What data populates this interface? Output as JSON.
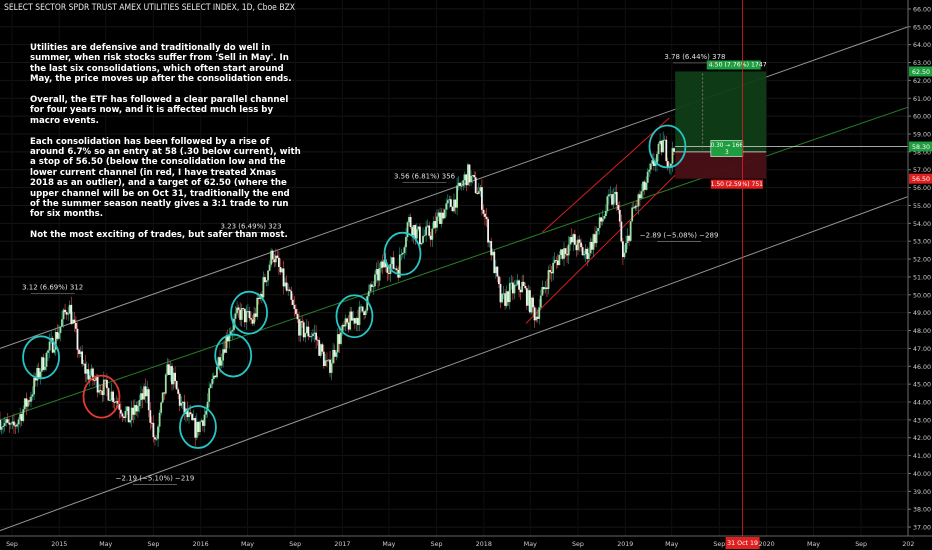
{
  "header": {
    "title": "SELECT SECTOR SPDR TRUST AMEX UTILITIES SELECT INDEX, 1D, Cboe BZX"
  },
  "note": {
    "paragraphs": [
      "Utilities are defensive and traditionally do well in summer, when risk stocks suffer from 'Sell in May'. In the last six consolidations, which often start around May, the price moves up after the consolidation ends.",
      "Overall, the ETF has followed a clear parallel channel for four years now, and it is affected much less by macro events.",
      "Each consolidation has been followed by a rise of around 6.7% so an entry at 58 (.30 below current), with a stop of 56.50 (below the consolidation low and the lower current channel (in red, I have treated Xmas 2018 as an outlier), and a target of 62.50 (where the upper channel will be on Oct 31, traditionally the end of the summer season neatly gives a 3:1 trade to run for six months.",
      "Not the most exciting of trades, but safer than most."
    ]
  },
  "chart_data": {
    "type": "candlestick",
    "title": "SELECT SECTOR SPDR TRUST AMEX UTILITIES SELECT INDEX, 1D, Cboe BZX",
    "y_axis": {
      "ylim": [
        36.5,
        66.5
      ],
      "ticks": [
        "37.00",
        "38.00",
        "39.00",
        "40.00",
        "41.00",
        "42.00",
        "43.00",
        "44.00",
        "45.00",
        "46.00",
        "47.00",
        "48.00",
        "49.00",
        "50.00",
        "51.00",
        "52.00",
        "53.00",
        "54.00",
        "55.00",
        "56.00",
        "57.00",
        "58.00",
        "59.00",
        "60.00",
        "61.00",
        "62.00",
        "63.00",
        "64.00",
        "65.00",
        "66.00"
      ],
      "position": "right"
    },
    "x_axis": {
      "range": [
        "2014-08-01",
        "2020-12-31"
      ],
      "ticks": [
        {
          "label": "Sep",
          "date": "2014-09-01"
        },
        {
          "label": "2015",
          "date": "2015-01-01"
        },
        {
          "label": "May",
          "date": "2015-05-01"
        },
        {
          "label": "Sep",
          "date": "2015-09-01"
        },
        {
          "label": "2016",
          "date": "2016-01-01"
        },
        {
          "label": "May",
          "date": "2016-05-01"
        },
        {
          "label": "Sep",
          "date": "2016-09-01"
        },
        {
          "label": "2017",
          "date": "2017-01-01"
        },
        {
          "label": "May",
          "date": "2017-05-01"
        },
        {
          "label": "Sep",
          "date": "2017-09-01"
        },
        {
          "label": "2018",
          "date": "2018-01-01"
        },
        {
          "label": "May",
          "date": "2018-05-01"
        },
        {
          "label": "Sep",
          "date": "2018-09-01"
        },
        {
          "label": "2019",
          "date": "2019-01-01"
        },
        {
          "label": "May",
          "date": "2019-05-01"
        },
        {
          "label": "Sep",
          "date": "2019-09-01"
        },
        {
          "label": "2020",
          "date": "2020-01-01"
        },
        {
          "label": "May",
          "date": "2020-05-01"
        },
        {
          "label": "Sep",
          "date": "2020-09-01"
        },
        {
          "label": "202",
          "date": "2021-01-01"
        }
      ]
    },
    "price_path": [
      [
        "2014-08-01",
        43.0
      ],
      [
        "2014-09-01",
        42.4
      ],
      [
        "2014-10-15",
        44.2
      ],
      [
        "2014-11-15",
        46.0
      ],
      [
        "2014-12-31",
        48.0
      ],
      [
        "2015-01-25",
        49.5
      ],
      [
        "2015-03-01",
        46.0
      ],
      [
        "2015-04-01",
        45.2
      ],
      [
        "2015-05-20",
        44.4
      ],
      [
        "2015-07-01",
        43.0
      ],
      [
        "2015-08-15",
        44.6
      ],
      [
        "2015-09-05",
        41.5
      ],
      [
        "2015-10-10",
        46.0
      ],
      [
        "2015-11-15",
        43.6
      ],
      [
        "2015-12-20",
        42.4
      ],
      [
        "2016-01-15",
        43.5
      ],
      [
        "2016-02-10",
        46.0
      ],
      [
        "2016-03-15",
        48.0
      ],
      [
        "2016-04-10",
        49.0
      ],
      [
        "2016-05-15",
        48.5
      ],
      [
        "2016-06-10",
        50.5
      ],
      [
        "2016-07-05",
        52.4
      ],
      [
        "2016-08-05",
        50.5
      ],
      [
        "2016-09-15",
        48.0
      ],
      [
        "2016-10-20",
        47.8
      ],
      [
        "2016-11-25",
        45.8
      ],
      [
        "2016-12-20",
        47.5
      ],
      [
        "2017-01-20",
        48.5
      ],
      [
        "2017-02-20",
        49.0
      ],
      [
        "2017-03-20",
        50.5
      ],
      [
        "2017-04-20",
        51.8
      ],
      [
        "2017-05-25",
        51.5
      ],
      [
        "2017-06-20",
        54.2
      ],
      [
        "2017-07-20",
        53.2
      ],
      [
        "2017-08-20",
        53.5
      ],
      [
        "2017-09-10",
        54.5
      ],
      [
        "2017-10-15",
        55.2
      ],
      [
        "2017-11-20",
        56.8
      ],
      [
        "2017-12-25",
        55.5
      ],
      [
        "2018-01-20",
        52.5
      ],
      [
        "2018-02-15",
        49.5
      ],
      [
        "2018-03-10",
        50.2
      ],
      [
        "2018-04-10",
        50.5
      ],
      [
        "2018-05-15",
        48.8
      ],
      [
        "2018-06-15",
        51.0
      ],
      [
        "2018-07-20",
        52.4
      ],
      [
        "2018-08-20",
        53.0
      ],
      [
        "2018-09-20",
        52.2
      ],
      [
        "2018-10-20",
        53.5
      ],
      [
        "2018-11-20",
        55.2
      ],
      [
        "2018-12-10",
        55.5
      ],
      [
        "2018-12-27",
        51.8
      ],
      [
        "2019-01-20",
        54.6
      ],
      [
        "2019-02-20",
        56.0
      ],
      [
        "2019-03-20",
        57.6
      ],
      [
        "2019-04-10",
        58.5
      ],
      [
        "2019-04-25",
        57.4
      ],
      [
        "2019-05-10",
        58.3
      ]
    ],
    "channels": {
      "upper": {
        "start": [
          "2014-08-01",
          47.0
        ],
        "end": [
          "2020-12-31",
          65.0
        ],
        "color": "#9e9e9e"
      },
      "lower": {
        "start": [
          "2014-08-01",
          36.8
        ],
        "end": [
          "2020-12-31",
          55.5
        ],
        "color": "#9e9e9e"
      },
      "middle": {
        "start": [
          "2014-08-01",
          43.0
        ],
        "end": [
          "2020-12-31",
          60.5
        ],
        "color": "#2e8b2e"
      },
      "red_upper": {
        "start": [
          "2018-06-01",
          53.5
        ],
        "end": [
          "2019-04-25",
          59.9
        ],
        "color": "#e02020"
      },
      "red_lower": {
        "start": [
          "2018-04-20",
          48.4
        ],
        "end": [
          "2019-05-10",
          56.7
        ],
        "color": "#e02020"
      }
    },
    "consolidations": [
      {
        "center": [
          "2014-11-15",
          46.5
        ],
        "color": "#26c6c6"
      },
      {
        "center": [
          "2015-04-20",
          44.3
        ],
        "color": "#e53935"
      },
      {
        "center": [
          "2015-12-25",
          42.6
        ],
        "color": "#26c6c6"
      },
      {
        "center": [
          "2016-03-25",
          46.6
        ],
        "color": "#26c6c6"
      },
      {
        "center": [
          "2016-05-05",
          49.0
        ],
        "color": "#26c6c6"
      },
      {
        "center": [
          "2017-02-01",
          48.8
        ],
        "color": "#26c6c6"
      },
      {
        "center": [
          "2017-06-05",
          52.3
        ],
        "color": "#26c6c6"
      },
      {
        "center": [
          "2019-04-20",
          58.3
        ],
        "color": "#26c6c6"
      }
    ],
    "annotations": [
      {
        "text": "3.12 (6.69%) 312",
        "x": "2014-12-15",
        "y": 50.3
      },
      {
        "text": "3.23 (6.49%) 323",
        "x": "2016-05-10",
        "y": 53.7
      },
      {
        "text": "3.56 (6.81%) 356",
        "x": "2017-08-01",
        "y": 56.5
      },
      {
        "text": "−2.19 (−5.10%) −219",
        "x": "2015-09-05",
        "y": 39.6
      },
      {
        "text": "−2.89 (−5.08%) −289",
        "x": "2019-05-20",
        "y": 53.2
      },
      {
        "text": "3.78 (6.44%) 378",
        "x": "2019-06-30",
        "y": 63.2
      }
    ],
    "trade": {
      "entry": 58.0,
      "stop": 56.5,
      "target": 62.5,
      "current": 58.3,
      "start": "2019-05-10",
      "end": "2019-12-31",
      "target_label": "4.50 (7.76%) 1747",
      "entry_label": "0.30 → 166",
      "entry_sub": "3",
      "stop_label": "1.50 (2.59%) 751"
    },
    "marker": {
      "date": "2019-10-31",
      "label": "31 Oct 19"
    },
    "price_tags": [
      {
        "value": 62.5,
        "label": "62.50",
        "color": "#1e9e3e"
      },
      {
        "value": 58.3,
        "label": "58.30",
        "color": "#1e9e3e"
      },
      {
        "value": 56.5,
        "label": "56.50",
        "color": "#e02020"
      }
    ]
  }
}
